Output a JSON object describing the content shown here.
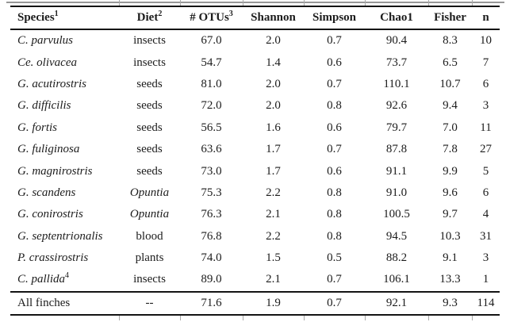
{
  "table": {
    "headers": [
      {
        "label": "Species",
        "sup": "1"
      },
      {
        "label": "Diet",
        "sup": "2"
      },
      {
        "label": "# OTUs",
        "sup": "3"
      },
      {
        "label": "Shannon",
        "sup": ""
      },
      {
        "label": "Simpson",
        "sup": ""
      },
      {
        "label": "Chao1",
        "sup": ""
      },
      {
        "label": "Fisher",
        "sup": ""
      },
      {
        "label": "n",
        "sup": ""
      }
    ],
    "rows": [
      {
        "species": "C. parvulus",
        "species_sup": "",
        "species_italic": true,
        "diet": "insects",
        "diet_italic": false,
        "values": [
          "67.0",
          "2.0",
          "0.7",
          "90.4",
          "8.3",
          "10"
        ]
      },
      {
        "species": "Ce. olivacea",
        "species_sup": "",
        "species_italic": true,
        "diet": "insects",
        "diet_italic": false,
        "values": [
          "54.7",
          "1.4",
          "0.6",
          "73.7",
          "6.5",
          "7"
        ]
      },
      {
        "species": "G. acutirostris",
        "species_sup": "",
        "species_italic": true,
        "diet": "seeds",
        "diet_italic": false,
        "values": [
          "81.0",
          "2.0",
          "0.7",
          "110.1",
          "10.7",
          "6"
        ]
      },
      {
        "species": "G. difficilis",
        "species_sup": "",
        "species_italic": true,
        "diet": "seeds",
        "diet_italic": false,
        "values": [
          "72.0",
          "2.0",
          "0.8",
          "92.6",
          "9.4",
          "3"
        ]
      },
      {
        "species": "G. fortis",
        "species_sup": "",
        "species_italic": true,
        "diet": "seeds",
        "diet_italic": false,
        "values": [
          "56.5",
          "1.6",
          "0.6",
          "79.7",
          "7.0",
          "11"
        ]
      },
      {
        "species": "G. fuliginosa",
        "species_sup": "",
        "species_italic": true,
        "diet": "seeds",
        "diet_italic": false,
        "values": [
          "63.6",
          "1.7",
          "0.7",
          "87.8",
          "7.8",
          "27"
        ]
      },
      {
        "species": "G. magnirostris",
        "species_sup": "",
        "species_italic": true,
        "diet": "seeds",
        "diet_italic": false,
        "values": [
          "73.0",
          "1.7",
          "0.6",
          "91.1",
          "9.9",
          "5"
        ]
      },
      {
        "species": "G. scandens",
        "species_sup": "",
        "species_italic": true,
        "diet": "Opuntia",
        "diet_italic": true,
        "values": [
          "75.3",
          "2.2",
          "0.8",
          "91.0",
          "9.6",
          "6"
        ]
      },
      {
        "species": "G. conirostris",
        "species_sup": "",
        "species_italic": true,
        "diet": "Opuntia",
        "diet_italic": true,
        "values": [
          "76.3",
          "2.1",
          "0.8",
          "100.5",
          "9.7",
          "4"
        ]
      },
      {
        "species": "G. septentrionalis",
        "species_sup": "",
        "species_italic": true,
        "diet": "blood",
        "diet_italic": false,
        "values": [
          "76.8",
          "2.2",
          "0.8",
          "94.5",
          "10.3",
          "31"
        ]
      },
      {
        "species": "P. crassirostris",
        "species_sup": "",
        "species_italic": true,
        "diet": "plants",
        "diet_italic": false,
        "values": [
          "74.0",
          "1.5",
          "0.5",
          "88.2",
          "9.1",
          "3"
        ]
      },
      {
        "species": "C. pallida",
        "species_sup": "4",
        "species_italic": true,
        "diet": "insects",
        "diet_italic": false,
        "values": [
          "89.0",
          "2.1",
          "0.7",
          "106.1",
          "13.3",
          "1"
        ]
      }
    ],
    "footer": {
      "species": "All finches",
      "species_sup": "",
      "species_italic": false,
      "diet": "--",
      "diet_italic": false,
      "values": [
        "71.6",
        "1.9",
        "0.7",
        "92.1",
        "9.3",
        "114"
      ]
    }
  },
  "colors": {
    "text": "#1c1c1c",
    "rule": "#141414",
    "gridline_artifact": "#a9a9a9",
    "background": "#ffffff"
  }
}
